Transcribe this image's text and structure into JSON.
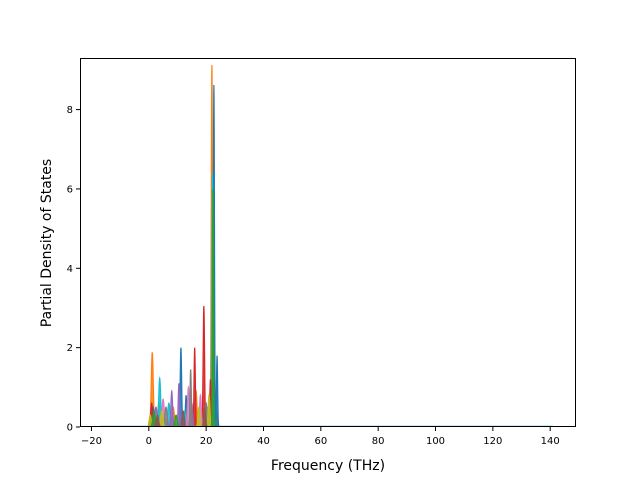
{
  "chart_data": {
    "type": "area",
    "title": "",
    "xlabel": "Frequency (THz)",
    "ylabel": "Partial Density of States",
    "xlim": [
      -24,
      149
    ],
    "ylim": [
      0,
      9.3
    ],
    "x_ticks": [
      -20,
      0,
      20,
      40,
      60,
      80,
      100,
      120,
      140
    ],
    "y_ticks": [
      0,
      2,
      4,
      6,
      8
    ],
    "grid": false,
    "legend": "none",
    "baseline_x_range": [
      -17,
      141
    ],
    "colors": [
      "#1f77b4",
      "#ff7f0e",
      "#2ca02c",
      "#d62728",
      "#9467bd",
      "#8c564b",
      "#e377c2",
      "#7f7f7f",
      "#bcbd22",
      "#17becf"
    ],
    "series": [
      {
        "color": "#ff7f0e",
        "peaks": [
          [
            1.2,
            1.88,
            0.7
          ],
          [
            3.5,
            0.6,
            0.8
          ],
          [
            8.5,
            0.5,
            0.8
          ],
          [
            16.5,
            0.9,
            0.6
          ],
          [
            22.0,
            9.12,
            0.45
          ],
          [
            23.5,
            0.4,
            0.5
          ]
        ]
      },
      {
        "color": "#1f77b4",
        "peaks": [
          [
            1.5,
            0.5,
            0.8
          ],
          [
            11.2,
            2.0,
            0.5
          ],
          [
            13.0,
            0.8,
            0.5
          ],
          [
            22.7,
            8.62,
            0.4
          ],
          [
            23.8,
            1.8,
            0.4
          ]
        ]
      },
      {
        "color": "#17becf",
        "peaks": [
          [
            3.8,
            1.23,
            0.7
          ],
          [
            7.0,
            0.6,
            0.8
          ],
          [
            12.5,
            0.4,
            0.6
          ],
          [
            22.2,
            6.4,
            0.4
          ]
        ]
      },
      {
        "color": "#d62728",
        "peaks": [
          [
            1.0,
            0.6,
            0.7
          ],
          [
            16.0,
            2.0,
            0.45
          ],
          [
            19.2,
            3.05,
            0.5
          ],
          [
            21.5,
            1.2,
            0.5
          ]
        ]
      },
      {
        "color": "#9467bd",
        "peaks": [
          [
            2.5,
            0.5,
            0.8
          ],
          [
            8.0,
            0.9,
            0.6
          ],
          [
            10.5,
            1.1,
            0.5
          ],
          [
            15.0,
            0.6,
            0.6
          ]
        ]
      },
      {
        "color": "#e377c2",
        "peaks": [
          [
            5.0,
            0.7,
            0.8
          ],
          [
            13.8,
            1.0,
            0.6
          ],
          [
            18.0,
            0.8,
            0.6
          ],
          [
            20.5,
            0.5,
            0.6
          ]
        ]
      },
      {
        "color": "#7f7f7f",
        "peaks": [
          [
            6.0,
            0.5,
            0.8
          ],
          [
            14.6,
            1.45,
            0.45
          ],
          [
            20.0,
            0.6,
            0.6
          ]
        ]
      },
      {
        "color": "#bcbd22",
        "peaks": [
          [
            0.5,
            0.3,
            0.7
          ],
          [
            4.5,
            0.4,
            0.8
          ],
          [
            17.5,
            0.5,
            0.7
          ],
          [
            21.0,
            0.8,
            0.6
          ]
        ]
      },
      {
        "color": "#2ca02c",
        "peaks": [
          [
            1.8,
            0.4,
            0.8
          ],
          [
            9.5,
            0.3,
            0.8
          ],
          [
            22.4,
            6.0,
            0.35
          ]
        ]
      },
      {
        "color": "#8c564b",
        "peaks": [
          [
            3.0,
            0.3,
            0.8
          ],
          [
            12.0,
            0.4,
            0.7
          ],
          [
            19.5,
            0.5,
            0.6
          ]
        ]
      }
    ]
  }
}
